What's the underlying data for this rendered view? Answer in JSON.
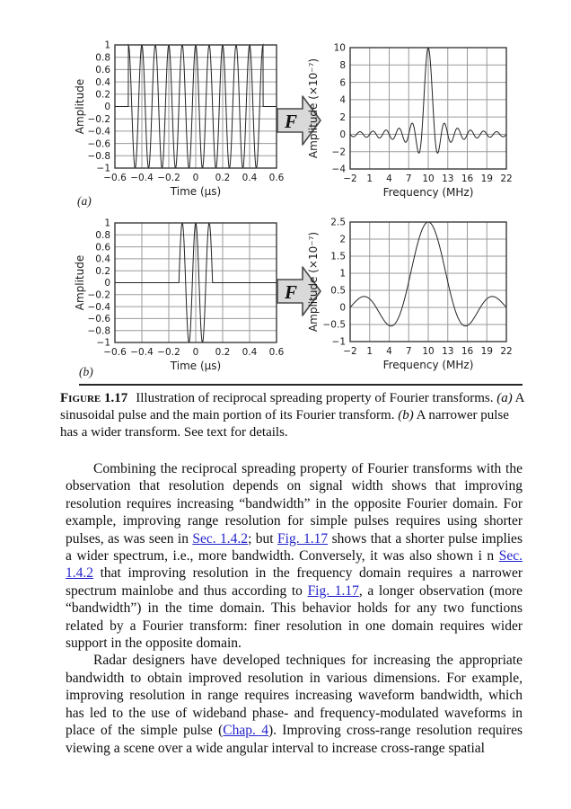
{
  "figure": {
    "panel_a_label": "(a)",
    "panel_b_label": "(b)",
    "arrow_label": "F",
    "colors": {
      "grid": "#9a9a9a",
      "border": "#3a3a3a",
      "curve": "#242424",
      "arrow_fill": "#d9d9d9",
      "arrow_stroke": "#4a4a4a"
    }
  },
  "chart_data": [
    {
      "id": "a-time-domain",
      "type": "line",
      "title": "",
      "xlabel": "Time (μs)",
      "ylabel": "Amplitude",
      "xlim": [
        -0.6,
        0.6
      ],
      "ylim": [
        -1,
        1
      ],
      "grid": true,
      "xticks": [
        -0.6,
        -0.4,
        -0.2,
        0,
        0.2,
        0.4,
        0.6
      ],
      "xtick_labels": [
        "−0.6",
        "−0.4",
        "−0.2",
        "0",
        "0.2",
        "0.4",
        "0.6"
      ],
      "yticks": [
        1,
        0.8,
        0.6,
        0.4,
        0.2,
        0,
        -0.2,
        -0.4,
        -0.6,
        -0.8,
        -1
      ],
      "ytick_labels": [
        "1",
        "0.8",
        "0.6",
        "0.4",
        "0.2",
        "0",
        "−0.2",
        "−0.4",
        "−0.6",
        "−0.8",
        "−1"
      ],
      "signal": {
        "kind": "cosine_pulse",
        "amplitude": 1,
        "frequency_mhz": 10,
        "start_us": -0.5,
        "end_us": 0.5
      }
    },
    {
      "id": "a-frequency-domain",
      "type": "line",
      "title": "",
      "xlabel": "Frequency (MHz)",
      "ylabel": "Amplitude (×10⁻⁷)",
      "xlim": [
        -2,
        22
      ],
      "ylim": [
        -4,
        10
      ],
      "grid": true,
      "xticks": [
        -2,
        1,
        4,
        7,
        10,
        13,
        16,
        19,
        22
      ],
      "xtick_labels": [
        "−2",
        "1",
        "4",
        "7",
        "10",
        "13",
        "16",
        "19",
        "22"
      ],
      "yticks": [
        10,
        8,
        6,
        4,
        2,
        0,
        -2,
        -4
      ],
      "ytick_labels": [
        "10",
        "8",
        "6",
        "4",
        "2",
        "0",
        "−2",
        "−4"
      ],
      "signal": {
        "kind": "sinc",
        "peak_e7": 10,
        "center_mhz": 10,
        "null_spacing_mhz": 1
      }
    },
    {
      "id": "b-time-domain",
      "type": "line",
      "title": "",
      "xlabel": "Time (μs)",
      "ylabel": "Amplitude",
      "xlim": [
        -0.6,
        0.6
      ],
      "ylim": [
        -1,
        1
      ],
      "grid": true,
      "xticks": [
        -0.6,
        -0.4,
        -0.2,
        0,
        0.2,
        0.4,
        0.6
      ],
      "xtick_labels": [
        "−0.6",
        "−0.4",
        "−0.2",
        "0",
        "0.2",
        "0.4",
        "0.6"
      ],
      "yticks": [
        1,
        0.8,
        0.6,
        0.4,
        0.2,
        0,
        -0.2,
        -0.4,
        -0.6,
        -0.8,
        -1
      ],
      "ytick_labels": [
        "1",
        "0.8",
        "0.6",
        "0.4",
        "0.2",
        "0",
        "−0.2",
        "−0.4",
        "−0.6",
        "−0.8",
        "−1"
      ],
      "signal": {
        "kind": "cosine_pulse",
        "amplitude": 1,
        "frequency_mhz": 10,
        "start_us": -0.125,
        "end_us": 0.125
      }
    },
    {
      "id": "b-frequency-domain",
      "type": "line",
      "title": "",
      "xlabel": "Frequency (MHz)",
      "ylabel": "Amplitude (×10⁻⁷)",
      "xlim": [
        -2,
        22
      ],
      "ylim": [
        -1,
        2.5
      ],
      "grid": true,
      "xticks": [
        -2,
        1,
        4,
        7,
        10,
        13,
        16,
        19,
        22
      ],
      "xtick_labels": [
        "−2",
        "1",
        "4",
        "7",
        "10",
        "13",
        "16",
        "19",
        "22"
      ],
      "yticks": [
        2.5,
        2,
        1.5,
        1,
        0.5,
        0,
        -0.5,
        -1
      ],
      "ytick_labels": [
        "2.5",
        "2",
        "1.5",
        "1",
        "0.5",
        "0",
        "−0.5",
        "−1"
      ],
      "signal": {
        "kind": "sinc",
        "peak_e7": 2.5,
        "center_mhz": 10,
        "null_spacing_mhz": 4
      }
    }
  ],
  "caption": {
    "label": "Figure 1.17",
    "segments": [
      {
        "t": "Illustration of reciprocal spreading property of Fourier transforms. "
      },
      {
        "t": "(a)",
        "i": true
      },
      {
        "t": " A sinusoidal pulse and the main portion of its Fourier transform. "
      },
      {
        "t": "(b)",
        "i": true
      },
      {
        "t": " A narrower pulse has a wider transform. See text for details."
      }
    ]
  },
  "body": {
    "paragraphs": [
      {
        "segments": [
          {
            "t": "Combining the reciprocal spreading property of Fourier transforms with the observation that resolution depends on signal width shows that improving resolution requires increasing “bandwidth” in the opposite Fourier domain. For example, improving range resolution for simple pulses requires using shorter pulses, as was seen in "
          },
          {
            "t": "Sec. 1.4.2",
            "link": true,
            "name": "link-sec-1-4-2"
          },
          {
            "t": "; but "
          },
          {
            "t": "Fig. 1.17",
            "link": true,
            "name": "link-fig-1-17"
          },
          {
            "t": " shows that a shorter pulse implies a wider spectrum, i.e., more bandwidth. Conversely, it was also shown i n "
          },
          {
            "t": "Sec. 1.4.2",
            "link": true,
            "name": "link-sec-1-4-2"
          },
          {
            "t": " that improving resolution in the frequency domain requires a narrower spectrum mainlobe and thus according to "
          },
          {
            "t": "Fig. 1.17",
            "link": true,
            "name": "link-fig-1-17"
          },
          {
            "t": ", a longer observation (more “bandwidth”) in the time domain. This behavior holds for any two functions related by a Fourier transform: finer resolution in one domain requires wider support in the opposite domain."
          }
        ]
      },
      {
        "segments": [
          {
            "t": "Radar designers have developed techniques for increasing the appropriate bandwidth to obtain improved resolution in various dimensions. For example, improving resolution in range requires increasing waveform bandwidth, which has led to the use of wideband phase- and frequency-modulated waveforms in place of the simple pulse ("
          },
          {
            "t": "Chap. 4",
            "link": true,
            "name": "link-chap-4"
          },
          {
            "t": "). Improving cross-range resolution requires viewing a scene over a wide angular interval to increase cross-range spatial"
          }
        ]
      }
    ]
  }
}
